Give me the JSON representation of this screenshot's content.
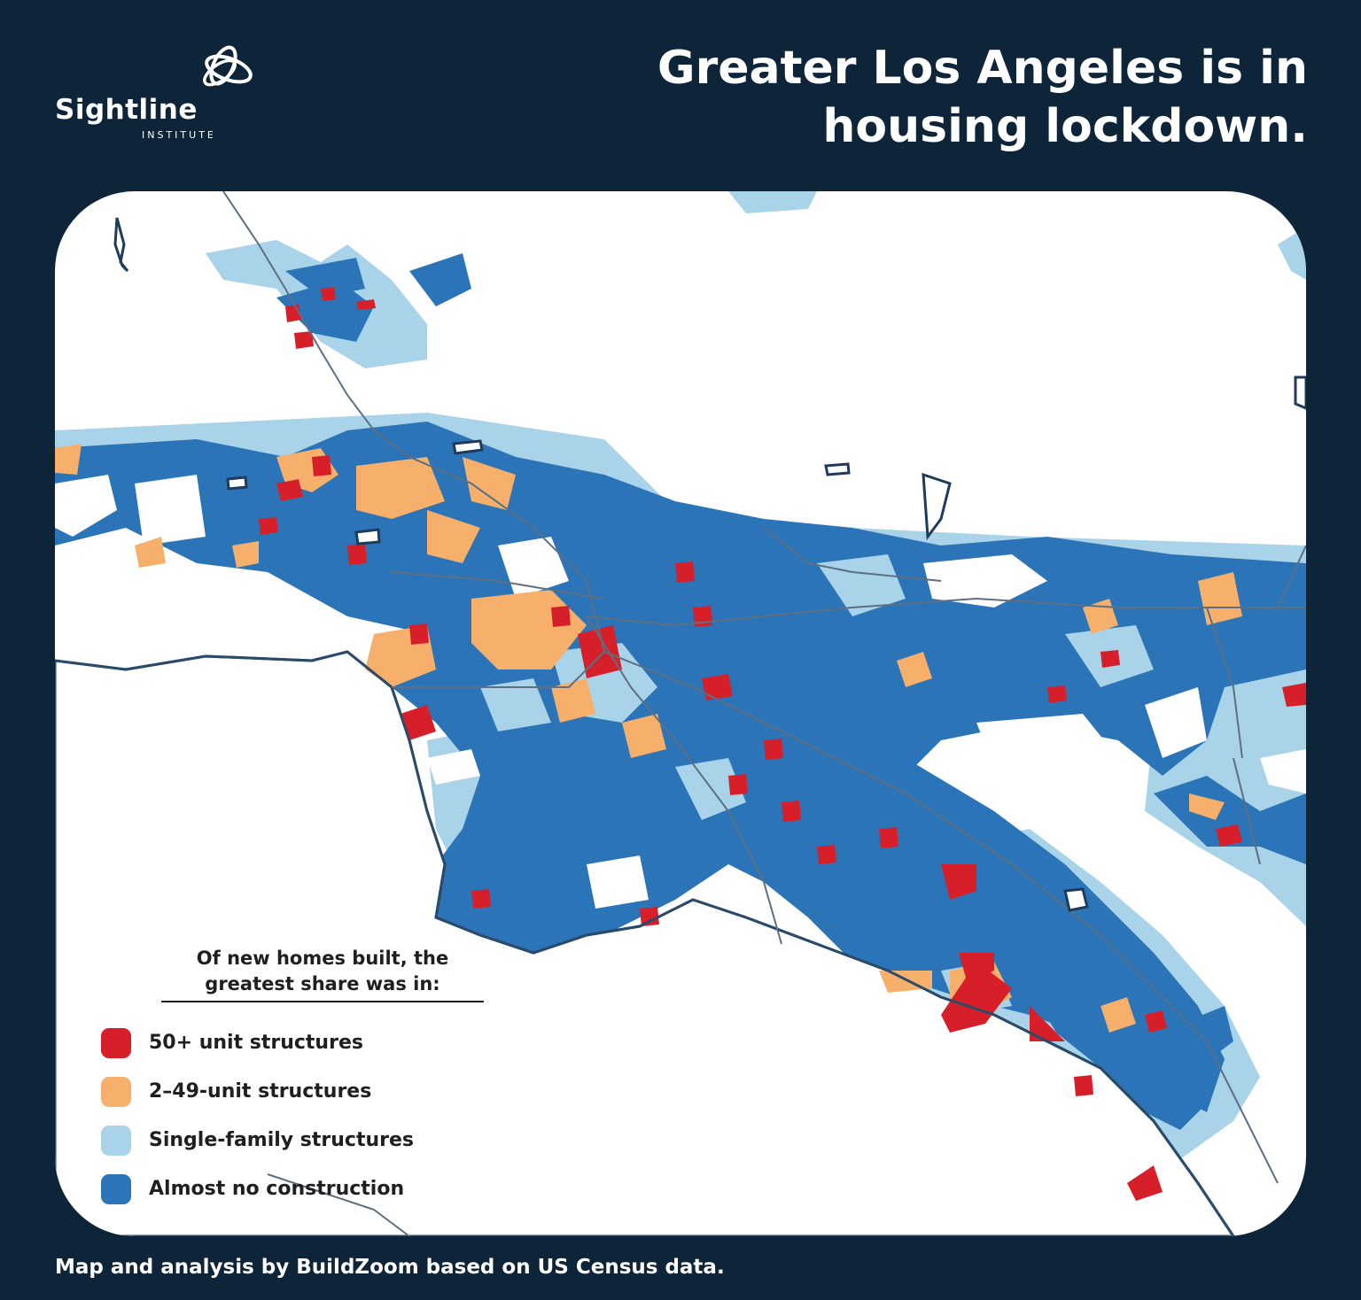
{
  "brand": {
    "name": "Sightline",
    "subtitle": "INSTITUTE",
    "logo_icon": "sightline-loops-icon"
  },
  "title": "Greater Los Angeles is in housing lockdown.",
  "legend": {
    "heading": "Of new homes built, the greatest share was in:",
    "items": [
      {
        "label": "50+ unit structures",
        "color": "#d71f2a"
      },
      {
        "label": "2–49-unit structures",
        "color": "#f6b06c"
      },
      {
        "label": "Single-family structures",
        "color": "#a8d3e8"
      },
      {
        "label": "Almost no construction",
        "color": "#2b74b8"
      }
    ]
  },
  "source": "Map and analysis by BuildZoom based on US Census data.",
  "colors": {
    "background": "#0d2439",
    "panel": "#ffffff",
    "ocean_land_white": "#ffffff",
    "road": "#5d6f80",
    "coast": "#2a4a6a"
  }
}
